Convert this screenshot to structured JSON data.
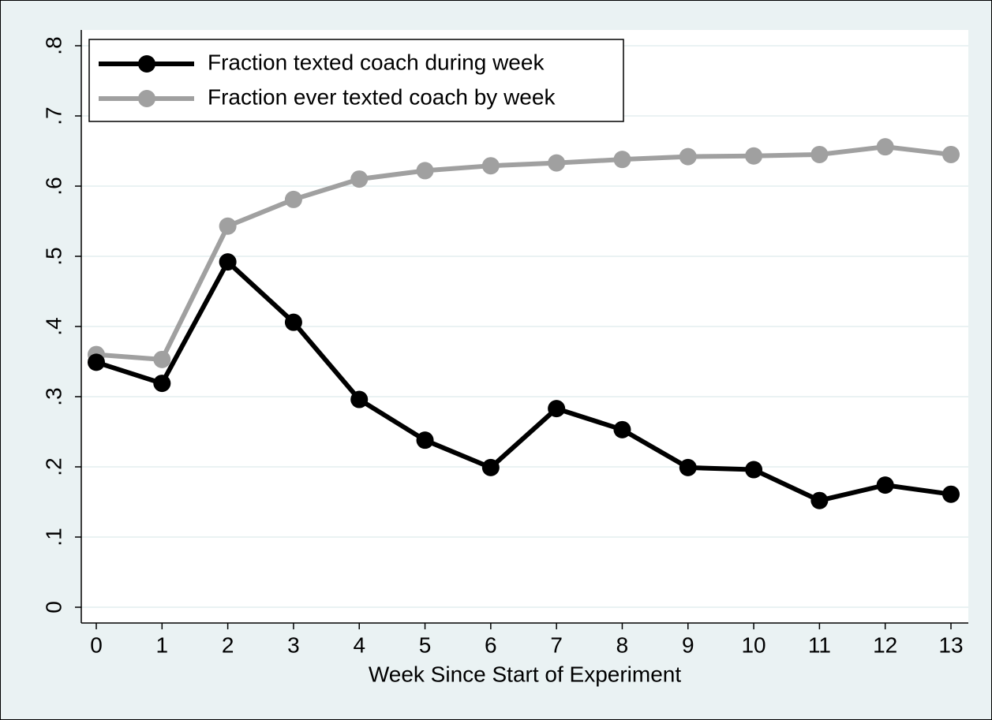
{
  "chart_data": {
    "type": "line",
    "x_label": "Week Since Start of Experiment",
    "x": [
      0,
      1,
      2,
      3,
      4,
      5,
      6,
      7,
      8,
      9,
      10,
      11,
      12,
      13
    ],
    "series": [
      {
        "name": "Fraction texted coach during week",
        "color": "#000000",
        "values": [
          0.349,
          0.319,
          0.492,
          0.406,
          0.296,
          0.238,
          0.199,
          0.283,
          0.253,
          0.199,
          0.196,
          0.152,
          0.174,
          0.161
        ]
      },
      {
        "name": "Fraction ever texted coach by week",
        "color": "#a0a0a0",
        "values": [
          0.36,
          0.353,
          0.543,
          0.581,
          0.61,
          0.622,
          0.629,
          0.633,
          0.638,
          0.642,
          0.643,
          0.645,
          0.656,
          0.645
        ]
      }
    ],
    "xlim": [
      0,
      13
    ],
    "xticks": [
      0,
      1,
      2,
      3,
      4,
      5,
      6,
      7,
      8,
      9,
      10,
      11,
      12,
      13
    ],
    "ylim": [
      0,
      0.8
    ],
    "yticks": [
      0,
      {
        "value": 0.1,
        "label": ".1"
      },
      {
        "value": 0.2,
        "label": ".2"
      },
      {
        "value": 0.3,
        "label": ".3"
      },
      {
        "value": 0.4,
        "label": ".4"
      },
      {
        "value": 0.5,
        "label": ".5"
      },
      {
        "value": 0.6,
        "label": ".6"
      },
      {
        "value": 0.7,
        "label": ".7"
      },
      {
        "value": 0.8,
        "label": ".8"
      }
    ],
    "grid": true,
    "legend": "top-left"
  }
}
